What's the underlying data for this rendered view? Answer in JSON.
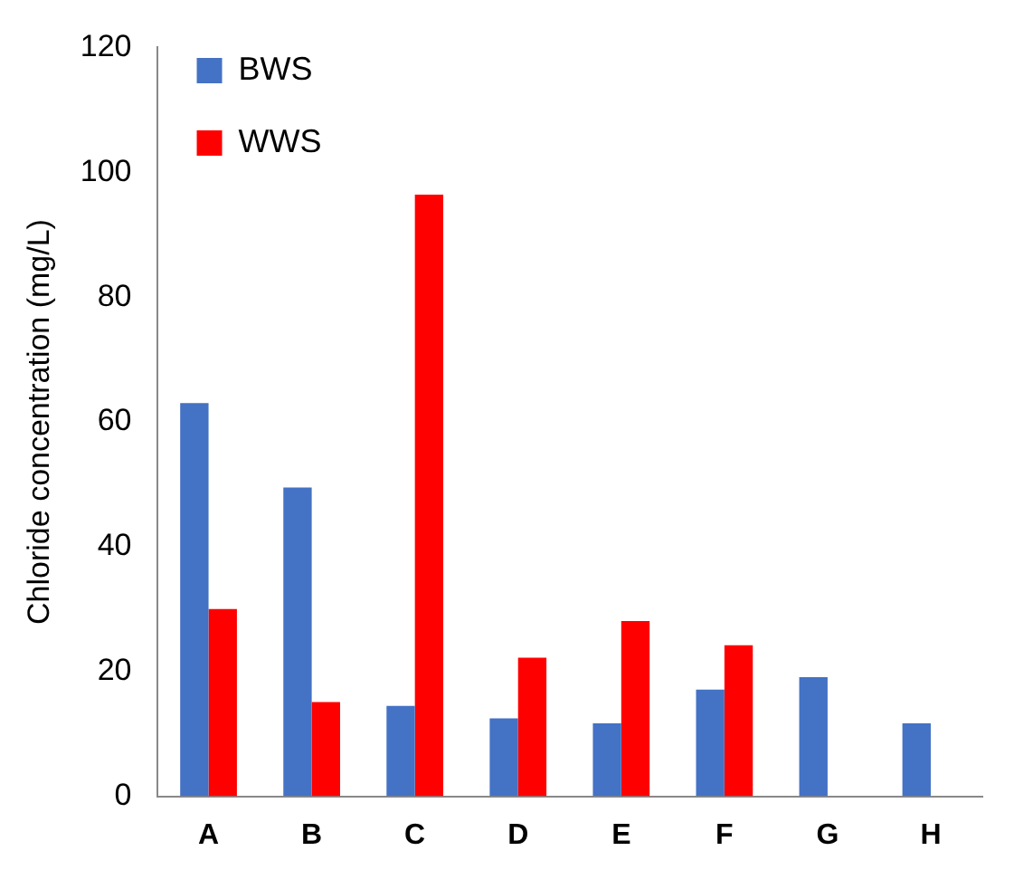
{
  "chart_data": {
    "type": "bar",
    "ylabel": "Chloride concentration (mg/L)",
    "categories": [
      "A",
      "B",
      "C",
      "D",
      "E",
      "F",
      "G",
      "H"
    ],
    "series": [
      {
        "name": "BWS",
        "color": "#4472c4",
        "values": [
          63,
          49.5,
          14.5,
          12.5,
          11.7,
          17.1,
          19.1,
          11.7
        ]
      },
      {
        "name": "WWS",
        "color": "#ff0000",
        "values": [
          30,
          15.1,
          96.4,
          22.2,
          28.1,
          24.2,
          null,
          null
        ]
      }
    ],
    "ylim": [
      0,
      120
    ],
    "yticks": [
      0,
      20,
      40,
      60,
      80,
      100,
      120
    ],
    "grid": false,
    "legend": "top left"
  }
}
